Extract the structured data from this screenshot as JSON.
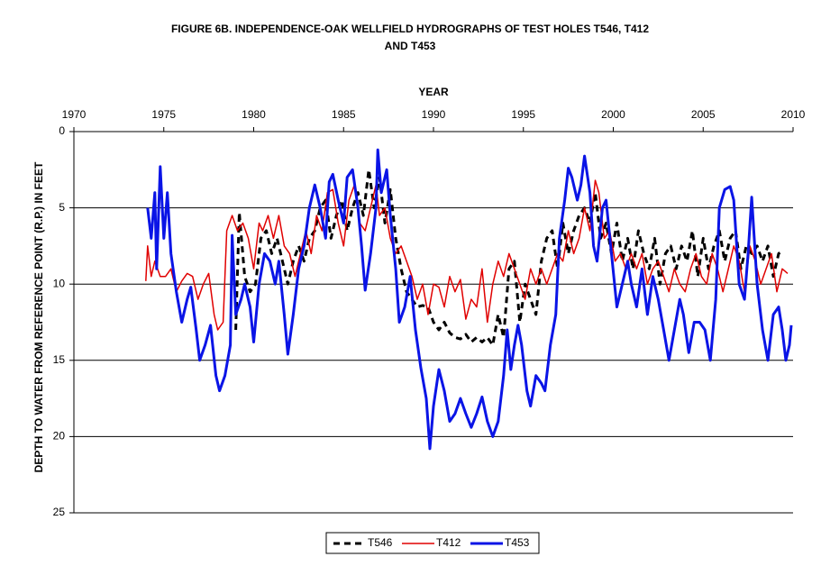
{
  "chart_data": {
    "type": "line",
    "title": [
      "FIGURE 6B. INDEPENDENCE-OAK WELLFIELD HYDROGRAPHS OF TEST HOLES  T546, T412",
      "AND T453"
    ],
    "x_label": "YEAR",
    "y_label": "DEPTH TO WATER FROM REFERENCE POINT (R.P.) IN FEET",
    "xlim": [
      1970,
      2010
    ],
    "xticks": [
      1970,
      1975,
      1980,
      1985,
      1990,
      1995,
      2000,
      2005,
      2010
    ],
    "ylim": [
      0,
      25
    ],
    "yticks": [
      0,
      5,
      10,
      15,
      20,
      25
    ],
    "y_inverted": true,
    "x_axis_position": "top",
    "grid": true,
    "legend": "bottom",
    "series": [
      {
        "name": "T546",
        "color": "#000000",
        "line_style": "dashed",
        "line_width": 3,
        "x": [
          1979.0,
          1979.2,
          1979.5,
          1979.8,
          1980.1,
          1980.4,
          1980.7,
          1981.0,
          1981.3,
          1981.6,
          1981.9,
          1982.2,
          1982.5,
          1982.8,
          1983.1,
          1983.4,
          1983.7,
          1984.0,
          1984.3,
          1984.6,
          1984.9,
          1985.2,
          1985.5,
          1985.8,
          1986.1,
          1986.4,
          1986.7,
          1987.0,
          1987.3,
          1987.6,
          1987.9,
          1988.2,
          1988.5,
          1988.8,
          1989.1,
          1989.4,
          1989.7,
          1990.0,
          1990.3,
          1990.6,
          1990.9,
          1991.2,
          1991.5,
          1991.8,
          1992.1,
          1992.4,
          1992.7,
          1993.0,
          1993.3,
          1993.6,
          1993.9,
          1994.2,
          1994.5,
          1994.8,
          1995.1,
          1995.4,
          1995.7,
          1996.0,
          1996.3,
          1996.6,
          1996.9,
          1997.2,
          1997.5,
          1997.8,
          1998.1,
          1998.4,
          1998.7,
          1999.0,
          1999.3,
          1999.6,
          1999.9,
          2000.2,
          2000.5,
          2000.8,
          2001.1,
          2001.4,
          2001.7,
          2002.0,
          2002.3,
          2002.6,
          2002.9,
          2003.2,
          2003.5,
          2003.8,
          2004.1,
          2004.4,
          2004.7,
          2005.0,
          2005.3,
          2005.6,
          2005.9,
          2006.2,
          2006.5,
          2006.8,
          2007.1,
          2007.4,
          2007.7,
          2008.0,
          2008.3,
          2008.6,
          2008.9,
          2009.2,
          2009.4
        ],
        "values": [
          13,
          5.3,
          9.5,
          10.5,
          10,
          7,
          6.5,
          8,
          7,
          8.5,
          10,
          8.5,
          7.5,
          8.5,
          7,
          6.5,
          5,
          4.5,
          7,
          5.5,
          4.5,
          6.5,
          5,
          4,
          5.5,
          2.5,
          5,
          3,
          6,
          3.8,
          7,
          9,
          10.5,
          11,
          11.5,
          11.4,
          11.5,
          12.5,
          13,
          12.5,
          13.2,
          13.5,
          13.6,
          13.3,
          13.8,
          13.5,
          13.8,
          13.5,
          14,
          12,
          13.5,
          9,
          8.5,
          12.5,
          10,
          11,
          12,
          8.5,
          7,
          6.5,
          9,
          6,
          8,
          6.5,
          5.5,
          5,
          6,
          4,
          7,
          6,
          8,
          6,
          8.5,
          7,
          9,
          6.5,
          8,
          9,
          7,
          10,
          8,
          7.5,
          9,
          7.5,
          8.5,
          6.5,
          9.5,
          7,
          9,
          7.5,
          6.5,
          8.5,
          7,
          6.5,
          9,
          7.5,
          8,
          7.5,
          8.5,
          7.5,
          9.5,
          8,
          7.8
        ]
      },
      {
        "name": "T412",
        "color": "#e00000",
        "line_style": "solid",
        "line_width": 1.5,
        "x": [
          1974.0,
          1974.1,
          1974.3,
          1974.5,
          1974.8,
          1975.1,
          1975.4,
          1975.7,
          1976.0,
          1976.3,
          1976.6,
          1976.9,
          1977.2,
          1977.5,
          1977.8,
          1978.0,
          1978.3,
          1978.5,
          1978.8,
          1979.1,
          1979.4,
          1979.7,
          1980.0,
          1980.3,
          1980.5,
          1980.8,
          1981.1,
          1981.4,
          1981.7,
          1982.0,
          1982.3,
          1982.6,
          1982.9,
          1983.2,
          1983.5,
          1983.8,
          1984.1,
          1984.4,
          1984.7,
          1985.0,
          1985.3,
          1985.6,
          1985.9,
          1986.2,
          1986.5,
          1986.8,
          1987.0,
          1987.3,
          1987.6,
          1987.9,
          1988.2,
          1988.5,
          1988.8,
          1989.1,
          1989.4,
          1989.7,
          1990.0,
          1990.3,
          1990.6,
          1990.9,
          1991.2,
          1991.5,
          1991.8,
          1992.1,
          1992.4,
          1992.7,
          1993.0,
          1993.3,
          1993.6,
          1993.9,
          1994.2,
          1994.5,
          1994.8,
          1995.1,
          1995.4,
          1995.7,
          1996.0,
          1996.3,
          1996.6,
          1996.9,
          1997.2,
          1997.5,
          1997.8,
          1998.1,
          1998.4,
          1998.7,
          1999.0,
          1999.2,
          1999.5,
          1999.8,
          2000.1,
          2000.4,
          2000.7,
          2001.0,
          2001.3,
          2001.6,
          2001.9,
          2002.2,
          2002.5,
          2002.8,
          2003.1,
          2003.4,
          2003.7,
          2004.0,
          2004.3,
          2004.6,
          2004.9,
          2005.2,
          2005.5,
          2005.8,
          2006.1,
          2006.4,
          2006.7,
          2007.0,
          2007.3,
          2007.6,
          2007.9,
          2008.2,
          2008.5,
          2008.8,
          2009.1,
          2009.4,
          2009.7
        ],
        "values": [
          9.8,
          7.5,
          9.5,
          8.5,
          9.5,
          9.5,
          9,
          10.5,
          9.8,
          9.3,
          9.5,
          11,
          10,
          9.3,
          12,
          13,
          12.5,
          6.5,
          5.5,
          6.5,
          6,
          7,
          9,
          6,
          6.5,
          5.5,
          7,
          5.5,
          7.5,
          8,
          9.5,
          8,
          6.5,
          8,
          5.5,
          6.5,
          4,
          3.8,
          6,
          7.5,
          4.5,
          3.5,
          6,
          6.5,
          5,
          3.5,
          5.5,
          5,
          7,
          8,
          7.5,
          8.5,
          9.5,
          11,
          10,
          12,
          10,
          10.2,
          11.5,
          9.5,
          10.5,
          9.7,
          12.3,
          11,
          11.5,
          9,
          12.5,
          10,
          8.5,
          9.5,
          8,
          9,
          10,
          11,
          9,
          10,
          9,
          10,
          9,
          8,
          8.5,
          6.5,
          8,
          7,
          5,
          6.5,
          3.2,
          4,
          7,
          6.5,
          8.5,
          8,
          9,
          8,
          9,
          8,
          10,
          9,
          8.5,
          9.5,
          10.5,
          9,
          10,
          10.5,
          9,
          8,
          9.5,
          10,
          8,
          9,
          10.5,
          9,
          7.5,
          8.5,
          10.5,
          7.5,
          8.5,
          10,
          9,
          8,
          10.5,
          9,
          9.3
        ]
      },
      {
        "name": "T453",
        "color": "#0a14e6",
        "line_style": "solid",
        "line_width": 3,
        "x": [
          1974.1,
          1974.3,
          1974.5,
          1974.6,
          1974.8,
          1975.0,
          1975.2,
          1975.4,
          1975.7,
          1976.0,
          1976.3,
          1976.5,
          1976.8,
          1977.0,
          1977.3,
          1977.6,
          1977.9,
          1978.1,
          1978.4,
          1978.7,
          1978.8,
          1979.0,
          1979.3,
          1979.5,
          1979.8,
          1980.0,
          1980.3,
          1980.6,
          1980.9,
          1981.2,
          1981.4,
          1981.7,
          1981.9,
          1982.2,
          1982.5,
          1982.8,
          1983.1,
          1983.4,
          1983.7,
          1984.0,
          1984.2,
          1984.4,
          1984.7,
          1985.0,
          1985.2,
          1985.5,
          1985.8,
          1986.0,
          1986.2,
          1986.5,
          1986.8,
          1986.9,
          1987.1,
          1987.4,
          1987.6,
          1987.9,
          1988.1,
          1988.4,
          1988.7,
          1989.0,
          1989.3,
          1989.6,
          1989.8,
          1990.0,
          1990.3,
          1990.6,
          1990.9,
          1991.2,
          1991.5,
          1991.8,
          1992.1,
          1992.4,
          1992.7,
          1993.0,
          1993.3,
          1993.6,
          1993.9,
          1994.1,
          1994.3,
          1994.5,
          1994.7,
          1994.9,
          1995.2,
          1995.4,
          1995.7,
          1996.0,
          1996.2,
          1996.5,
          1996.8,
          1997.0,
          1997.3,
          1997.5,
          1997.7,
          1998.0,
          1998.2,
          1998.4,
          1998.7,
          1998.9,
          1999.1,
          1999.4,
          1999.6,
          1999.9,
          2000.2,
          2000.5,
          2000.8,
          2001.0,
          2001.3,
          2001.6,
          2001.9,
          2002.2,
          2002.5,
          2002.8,
          2003.1,
          2003.4,
          2003.7,
          2003.9,
          2004.2,
          2004.5,
          2004.8,
          2005.1,
          2005.4,
          2005.7,
          2005.9,
          2006.2,
          2006.5,
          2006.7,
          2007.0,
          2007.3,
          2007.5,
          2007.7,
          2008.0,
          2008.3,
          2008.6,
          2008.9,
          2009.2,
          2009.4,
          2009.6,
          2009.8,
          2009.9
        ],
        "values": [
          5,
          7,
          4,
          9,
          2.3,
          7,
          4,
          8,
          10.5,
          12.5,
          11,
          10.2,
          13,
          15,
          14,
          12.7,
          16,
          17,
          16,
          14,
          6.8,
          12,
          11,
          10,
          11.5,
          13.8,
          10,
          8,
          8.5,
          10,
          8.5,
          12,
          14.6,
          12,
          9,
          7.5,
          5,
          3.5,
          5,
          7,
          3.3,
          2.8,
          4.5,
          6,
          3,
          2.5,
          5,
          7.5,
          10.4,
          8,
          5,
          1.2,
          4,
          2.5,
          5.5,
          9,
          12.5,
          11.5,
          9.5,
          13,
          15.5,
          17.5,
          20.8,
          18,
          15.6,
          17,
          19,
          18.5,
          17.5,
          18.5,
          19.4,
          18.5,
          17.4,
          19,
          20,
          19,
          16,
          13,
          15.6,
          14,
          12.7,
          14,
          17,
          18,
          16,
          16.5,
          17,
          14,
          12,
          7,
          4.5,
          2.4,
          3,
          4.5,
          3.5,
          1.6,
          4,
          7.5,
          8.5,
          5,
          4.5,
          8,
          11.5,
          10,
          8.5,
          10,
          11.5,
          9,
          12,
          9.5,
          11,
          13,
          15,
          13,
          11,
          12,
          14.5,
          12.5,
          12.5,
          13,
          15,
          11,
          5,
          3.8,
          3.6,
          4.5,
          10,
          11,
          8,
          4.3,
          10,
          13,
          15,
          12,
          11.5,
          13,
          15,
          14,
          12.7
        ]
      }
    ]
  }
}
